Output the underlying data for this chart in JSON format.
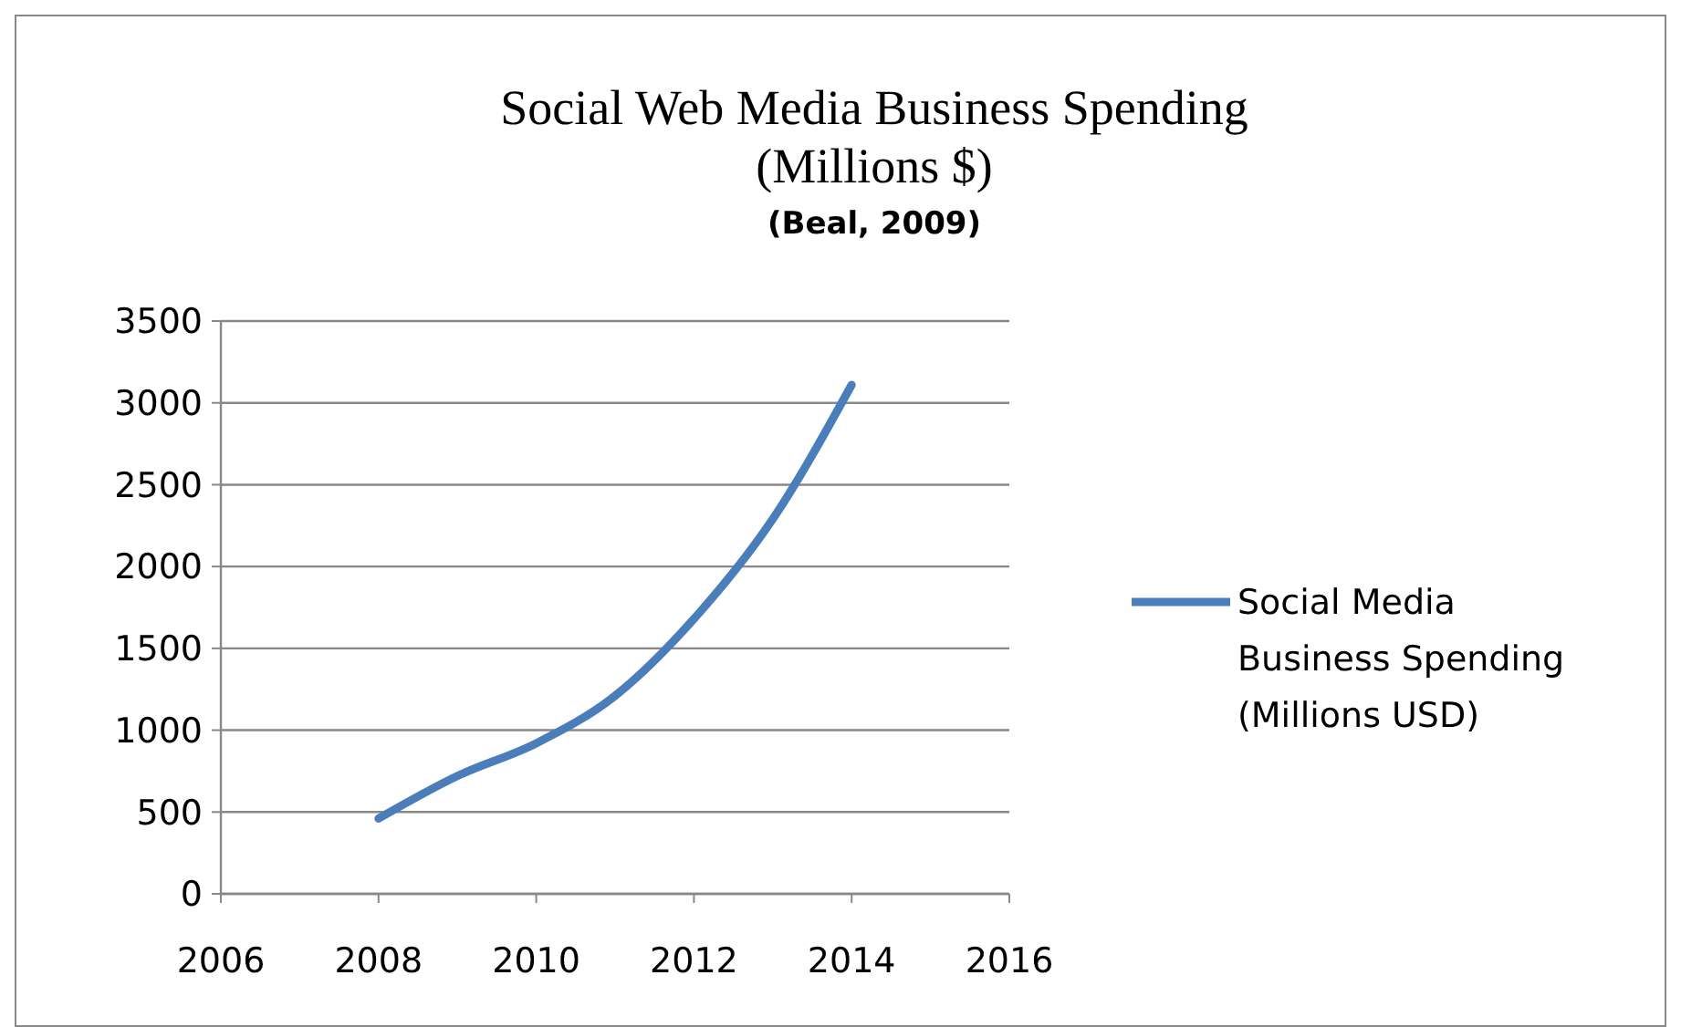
{
  "chart_data": {
    "type": "line",
    "title": "Social Web Media Business Spending\n(Millions $)",
    "subtitle": "(Beal, 2009)",
    "x": [
      2008,
      2009,
      2010,
      2011,
      2012,
      2013,
      2014
    ],
    "series": [
      {
        "name": "Social Media Business Spending (Millions USD)",
        "color": "#4a7ebb",
        "values": [
          460,
          720,
          920,
          1210,
          1680,
          2290,
          3110
        ]
      }
    ],
    "xlim": [
      2006,
      2016
    ],
    "xticks": [
      2006,
      2008,
      2010,
      2012,
      2014,
      2016
    ],
    "ylim": [
      0,
      3500
    ],
    "yticks": [
      0,
      500,
      1000,
      1500,
      2000,
      2500,
      3000,
      3500
    ],
    "grid": "y",
    "legend": "right",
    "marker": "none",
    "line_style": "solid"
  }
}
